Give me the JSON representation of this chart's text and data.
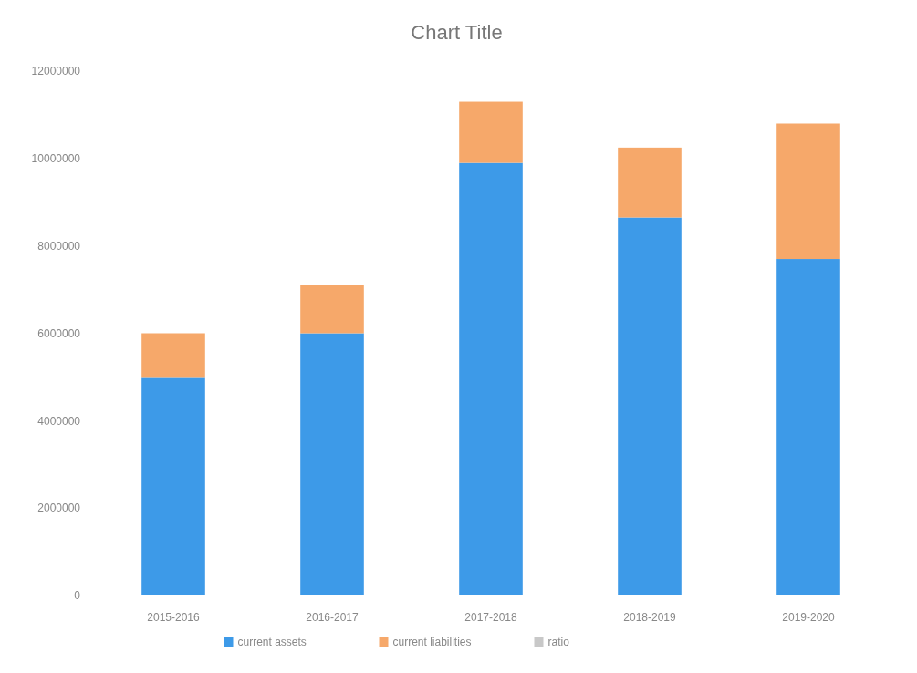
{
  "chart_data": {
    "type": "bar",
    "title": "Chart Title",
    "stacked": true,
    "categories": [
      "2015-2016",
      "2016-2017",
      "2017-2018",
      "2018-2019",
      "2019-2020"
    ],
    "series": [
      {
        "name": "current assets",
        "color": "#3d9ae8",
        "values": [
          5000000,
          6000000,
          9900000,
          8650000,
          7700000
        ]
      },
      {
        "name": "current liabilities",
        "color": "#f6a86a",
        "values": [
          1000000,
          1100000,
          1400000,
          1600000,
          3100000
        ]
      },
      {
        "name": "ratio",
        "color": "#c8c8c8",
        "values": [
          null,
          null,
          null,
          null,
          null
        ]
      }
    ],
    "ylim": [
      0,
      12000000
    ],
    "yticks": [
      0,
      2000000,
      4000000,
      6000000,
      8000000,
      10000000,
      12000000
    ],
    "grid": false,
    "legend": "bottom"
  }
}
